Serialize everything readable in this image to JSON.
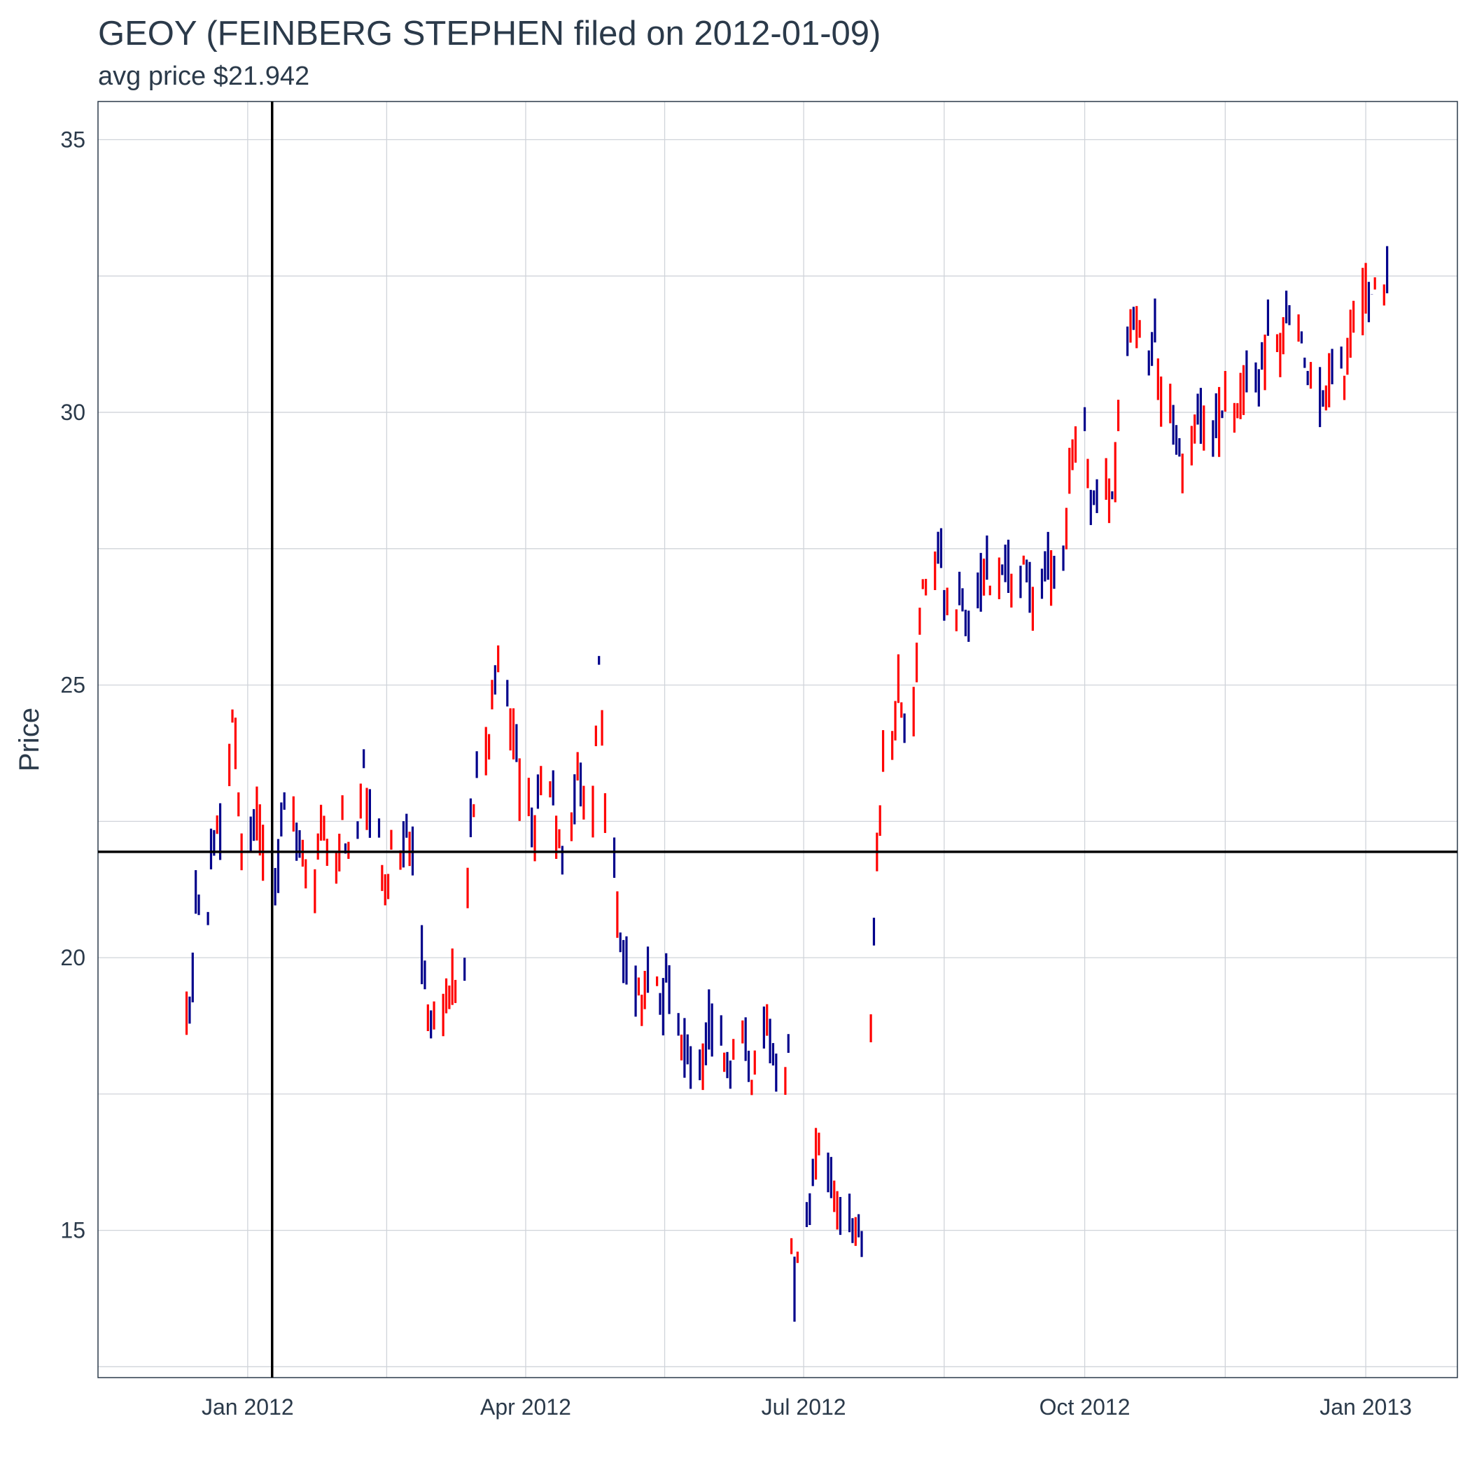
{
  "title": "GEOY (FEINBERG STEPHEN filed on 2012-01-09)",
  "subtitle": "avg price $21.942",
  "chart_data": {
    "type": "ohlc",
    "ylabel": "Price",
    "xlabel": "",
    "x_range": [
      "2011-11-13",
      "2013-01-31"
    ],
    "ylim": [
      12.3,
      35.7
    ],
    "y_ticks": [
      15,
      20,
      25,
      30,
      35
    ],
    "x_ticks": [
      {
        "date": "2012-01-01",
        "label": "Jan 2012"
      },
      {
        "date": "2012-04-01",
        "label": "Apr 2012"
      },
      {
        "date": "2012-07-01",
        "label": "Jul 2012"
      },
      {
        "date": "2012-10-01",
        "label": "Oct 2012"
      },
      {
        "date": "2013-01-01",
        "label": "Jan 2013"
      }
    ],
    "grid": true,
    "reference_lines": {
      "filing_date": "2012-01-09",
      "avg_price": 21.942
    },
    "colors": {
      "up": "#00008b",
      "down": "#ff0000",
      "reference": "#000000",
      "grid": "#d0d4da",
      "text": "#2b3a4a"
    },
    "segments": [
      {
        "start": "2011-12-12",
        "end": "2012-02-24",
        "key": [
          [
            18.8,
            19.0
          ],
          [
            19.0,
            21.4
          ],
          [
            21.4,
            20.4
          ],
          [
            20.4,
            21.8
          ],
          [
            21.8,
            22.2
          ],
          [
            22.2,
            22.4
          ],
          [
            22.4,
            24.8
          ],
          [
            24.8,
            23.6
          ],
          [
            23.6,
            22.4
          ],
          [
            22.4,
            21.8
          ],
          [
            21.8,
            22.6
          ],
          [
            22.6,
            22.2
          ],
          [
            22.2,
            21.6
          ],
          [
            21.6,
            21.4
          ],
          [
            21.4,
            22.4
          ],
          [
            22.4,
            23.0
          ],
          [
            23.0,
            21.8
          ],
          [
            21.8,
            22.4
          ],
          [
            22.4,
            21.2
          ],
          [
            21.2,
            21.6
          ],
          [
            21.6,
            22.8
          ],
          [
            22.8,
            22.0
          ],
          [
            22.0,
            21.8
          ],
          [
            21.8,
            22.6
          ],
          [
            22.6,
            22.0
          ],
          [
            22.0,
            22.2
          ],
          [
            22.2,
            23.4
          ],
          [
            23.4,
            22.6
          ],
          [
            22.6,
            22.2
          ],
          [
            22.2,
            21.4
          ],
          [
            21.4,
            21.2
          ],
          [
            21.2,
            22.2
          ],
          [
            22.2,
            22.0
          ],
          [
            22.0,
            22.6
          ],
          [
            22.6,
            21.8
          ],
          [
            21.8,
            20.2
          ]
        ]
      },
      {
        "start": "2012-02-27",
        "end": "2012-03-16",
        "key": [
          [
            20.0,
            19.4
          ],
          [
            19.4,
            19.0
          ],
          [
            19.0,
            18.9
          ],
          [
            18.9,
            19.2
          ],
          [
            19.2,
            19.6
          ],
          [
            19.6,
            19.3
          ],
          [
            19.3,
            19.8
          ],
          [
            19.8,
            19.4
          ],
          [
            19.4,
            20.2
          ],
          [
            20.2,
            22.4
          ],
          [
            22.4,
            22.8
          ],
          [
            22.8,
            23.4
          ],
          [
            23.4,
            23.8
          ]
        ]
      },
      {
        "start": "2012-03-19",
        "end": "2012-04-30",
        "key": [
          [
            23.8,
            24.2
          ],
          [
            24.2,
            24.6
          ],
          [
            24.6,
            24.8
          ],
          [
            24.8,
            25.2
          ],
          [
            25.2,
            24.6
          ],
          [
            24.6,
            24.2
          ],
          [
            24.2,
            24.0
          ],
          [
            24.0,
            23.6
          ],
          [
            23.6,
            23.0
          ],
          [
            23.0,
            22.6
          ],
          [
            22.6,
            22.0
          ],
          [
            22.0,
            22.4
          ],
          [
            22.4,
            23.0
          ],
          [
            23.0,
            23.6
          ],
          [
            23.6,
            23.2
          ],
          [
            23.2,
            22.6
          ],
          [
            22.6,
            22.0
          ],
          [
            22.0,
            21.6
          ],
          [
            21.6,
            22.2
          ],
          [
            22.2,
            22.8
          ],
          [
            22.8,
            23.6
          ],
          [
            23.6,
            23.2
          ],
          [
            23.2,
            22.8
          ],
          [
            22.8,
            22.6
          ],
          [
            22.6,
            24.0
          ],
          [
            24.0,
            25.6
          ],
          [
            25.6,
            24.6
          ],
          [
            24.6,
            22.8
          ],
          [
            22.8,
            22.0
          ],
          [
            22.0,
            21.2
          ]
        ]
      },
      {
        "start": "2012-05-01",
        "end": "2012-06-26",
        "key": [
          [
            21.0,
            20.2
          ],
          [
            20.2,
            19.8
          ],
          [
            19.8,
            19.4
          ],
          [
            19.4,
            19.2
          ],
          [
            19.2,
            19.4
          ],
          [
            19.4,
            19.8
          ],
          [
            19.8,
            19.4
          ],
          [
            19.4,
            19.2
          ],
          [
            19.2,
            19.6
          ],
          [
            19.6,
            19.0
          ],
          [
            19.0,
            18.6
          ],
          [
            18.6,
            18.2
          ],
          [
            18.2,
            17.8
          ],
          [
            17.8,
            18.0
          ],
          [
            18.0,
            18.4
          ],
          [
            18.4,
            18.8
          ],
          [
            18.8,
            18.6
          ],
          [
            18.6,
            18.2
          ],
          [
            18.2,
            17.9
          ],
          [
            17.9,
            18.2
          ],
          [
            18.2,
            18.6
          ],
          [
            18.6,
            18.2
          ],
          [
            18.2,
            17.8
          ],
          [
            17.8,
            18.3
          ],
          [
            18.3,
            18.9
          ],
          [
            18.9,
            18.4
          ],
          [
            18.4,
            18.0
          ],
          [
            18.0,
            17.8
          ],
          [
            17.8,
            18.2
          ],
          [
            18.2,
            18.5
          ]
        ]
      },
      {
        "start": "2012-06-27",
        "end": "2012-07-20",
        "key": [
          [
            14.8,
            13.8
          ],
          [
            13.8,
            14.9
          ],
          [
            14.9,
            15.4
          ],
          [
            15.4,
            15.6
          ],
          [
            15.6,
            16.2
          ],
          [
            16.2,
            16.5
          ],
          [
            16.5,
            16.3
          ],
          [
            16.3,
            16.0
          ],
          [
            16.0,
            15.6
          ],
          [
            15.6,
            15.3
          ],
          [
            15.3,
            15.5
          ],
          [
            15.5,
            15.2
          ],
          [
            15.2,
            15.1
          ],
          [
            15.1,
            15.3
          ],
          [
            15.3,
            15.2
          ],
          [
            15.2,
            15.1
          ],
          [
            15.1,
            15.3
          ]
        ]
      },
      {
        "start": "2012-07-23",
        "end": "2012-09-21",
        "key": [
          [
            18.6,
            20.4
          ],
          [
            20.4,
            22.2
          ],
          [
            22.2,
            22.8
          ],
          [
            22.8,
            23.6
          ],
          [
            23.6,
            24.0
          ],
          [
            24.0,
            24.6
          ],
          [
            24.6,
            25.2
          ],
          [
            25.2,
            24.4
          ],
          [
            24.4,
            24.2
          ],
          [
            24.2,
            24.8
          ],
          [
            24.8,
            25.6
          ],
          [
            25.6,
            26.4
          ],
          [
            26.4,
            26.8
          ],
          [
            26.8,
            27.2
          ],
          [
            27.2,
            27.6
          ],
          [
            27.6,
            27.4
          ],
          [
            27.4,
            27.0
          ],
          [
            27.0,
            26.6
          ],
          [
            26.6,
            26.2
          ],
          [
            26.2,
            26.4
          ],
          [
            26.4,
            26.8
          ],
          [
            26.8,
            26.4
          ],
          [
            26.4,
            26.2
          ],
          [
            26.2,
            26.6
          ],
          [
            26.6,
            26.8
          ],
          [
            26.8,
            27.2
          ],
          [
            27.2,
            27.5
          ],
          [
            27.5,
            27.0
          ],
          [
            27.0,
            26.8
          ],
          [
            26.8,
            27.0
          ],
          [
            27.0,
            27.4
          ],
          [
            27.4,
            27.0
          ],
          [
            27.0,
            26.7
          ],
          [
            26.7,
            27.0
          ],
          [
            27.0,
            27.4
          ],
          [
            27.4,
            27.2
          ],
          [
            27.2,
            26.8
          ],
          [
            26.8,
            26.4
          ],
          [
            26.4,
            26.6
          ],
          [
            26.6,
            27.0
          ],
          [
            27.0,
            27.4
          ],
          [
            27.4,
            27.1
          ],
          [
            27.1,
            26.9
          ],
          [
            26.9,
            27.2
          ]
        ]
      },
      {
        "start": "2012-09-24",
        "end": "2013-01-08",
        "key": [
          [
            27.4,
            28.6
          ],
          [
            28.6,
            29.8
          ],
          [
            29.8,
            29.6
          ],
          [
            29.6,
            28.4
          ],
          [
            28.4,
            28.0
          ],
          [
            28.0,
            28.8
          ],
          [
            28.8,
            28.2
          ],
          [
            28.2,
            29.4
          ],
          [
            29.4,
            31.6
          ],
          [
            31.6,
            32.0
          ],
          [
            32.0,
            31.4
          ],
          [
            31.4,
            30.8
          ],
          [
            30.8,
            31.4
          ],
          [
            31.4,
            30.4
          ],
          [
            30.4,
            30.0
          ],
          [
            30.0,
            29.4
          ],
          [
            29.4,
            28.8
          ],
          [
            28.8,
            29.8
          ],
          [
            29.8,
            30.0
          ],
          [
            30.0,
            29.8
          ],
          [
            29.8,
            29.6
          ],
          [
            29.6,
            30.0
          ],
          [
            30.0,
            30.3
          ],
          [
            30.3,
            30.0
          ],
          [
            30.0,
            30.4
          ],
          [
            30.4,
            30.8
          ],
          [
            30.8,
            30.2
          ],
          [
            30.2,
            30.6
          ],
          [
            30.6,
            31.6
          ],
          [
            31.6,
            31.0
          ],
          [
            31.0,
            31.6
          ],
          [
            31.6,
            31.8
          ],
          [
            31.8,
            31.2
          ],
          [
            31.2,
            30.8
          ],
          [
            30.8,
            30.4
          ],
          [
            30.4,
            30.0
          ],
          [
            30.0,
            30.4
          ],
          [
            30.4,
            30.8
          ],
          [
            30.8,
            30.6
          ],
          [
            30.6,
            31.2
          ],
          [
            31.2,
            32.0
          ],
          [
            32.0,
            32.2
          ],
          [
            32.2,
            31.8
          ],
          [
            31.8,
            32.4
          ],
          [
            32.4,
            32.6
          ],
          [
            32.6,
            33.6
          ]
        ]
      }
    ]
  }
}
